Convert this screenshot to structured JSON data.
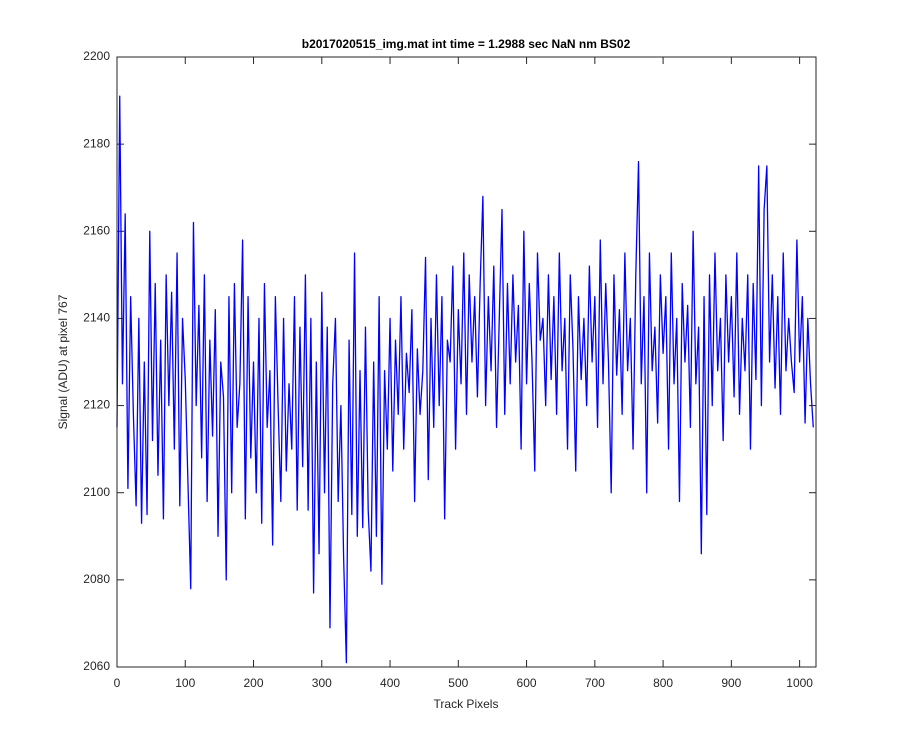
{
  "chart_data": {
    "type": "line",
    "title": "b2017020515_img.mat int time = 1.2988 sec  NaN nm BS02",
    "x_label": "Track Pixels",
    "y_label": "Signal (ADU) at pixel 767",
    "xlim": [
      0,
      1024
    ],
    "ylim": [
      2060,
      2200
    ],
    "xticks": [
      0,
      100,
      200,
      300,
      400,
      500,
      600,
      700,
      800,
      900,
      1000
    ],
    "yticks": [
      2060,
      2080,
      2100,
      2120,
      2140,
      2160,
      2180,
      2200
    ],
    "x": [
      0,
      4,
      8,
      12,
      16,
      20,
      24,
      28,
      32,
      36,
      40,
      44,
      48,
      52,
      56,
      60,
      64,
      68,
      72,
      76,
      80,
      84,
      88,
      92,
      96,
      100,
      104,
      108,
      112,
      116,
      120,
      124,
      128,
      132,
      136,
      140,
      144,
      148,
      152,
      156,
      160,
      164,
      168,
      172,
      176,
      180,
      184,
      188,
      192,
      196,
      200,
      204,
      208,
      212,
      216,
      220,
      224,
      228,
      232,
      236,
      240,
      244,
      248,
      252,
      256,
      260,
      264,
      268,
      272,
      276,
      280,
      284,
      288,
      292,
      296,
      300,
      304,
      308,
      312,
      316,
      320,
      324,
      328,
      332,
      336,
      340,
      344,
      348,
      352,
      356,
      360,
      364,
      368,
      372,
      376,
      380,
      384,
      388,
      392,
      396,
      400,
      404,
      408,
      412,
      416,
      420,
      424,
      428,
      432,
      436,
      440,
      444,
      448,
      452,
      456,
      460,
      464,
      468,
      472,
      476,
      480,
      484,
      488,
      492,
      496,
      500,
      504,
      508,
      512,
      516,
      520,
      524,
      528,
      532,
      536,
      540,
      544,
      548,
      552,
      556,
      560,
      564,
      568,
      572,
      576,
      580,
      584,
      588,
      592,
      596,
      600,
      604,
      608,
      612,
      616,
      620,
      624,
      628,
      632,
      636,
      640,
      644,
      648,
      652,
      656,
      660,
      664,
      668,
      672,
      676,
      680,
      684,
      688,
      692,
      696,
      700,
      704,
      708,
      712,
      716,
      720,
      724,
      728,
      732,
      736,
      740,
      744,
      748,
      752,
      756,
      760,
      764,
      768,
      772,
      776,
      780,
      784,
      788,
      792,
      796,
      800,
      804,
      808,
      812,
      816,
      820,
      824,
      828,
      832,
      836,
      840,
      844,
      848,
      852,
      856,
      860,
      864,
      868,
      872,
      876,
      880,
      884,
      888,
      892,
      896,
      900,
      904,
      908,
      912,
      916,
      920,
      924,
      928,
      932,
      936,
      940,
      944,
      948,
      952,
      956,
      960,
      964,
      968,
      972,
      976,
      980,
      984,
      988,
      992,
      996,
      1000,
      1004,
      1008,
      1012,
      1016,
      1020
    ],
    "series": [
      {
        "color": "#0000ff",
        "values": [
          2115,
          2191,
          2125,
          2164,
          2101,
          2145,
          2118,
          2097,
          2140,
          2093,
          2130,
          2095,
          2160,
          2112,
          2148,
          2104,
          2135,
          2094,
          2150,
          2120,
          2146,
          2110,
          2155,
          2097,
          2140,
          2126,
          2102,
          2078,
          2162,
          2120,
          2143,
          2108,
          2150,
          2098,
          2135,
          2113,
          2142,
          2090,
          2130,
          2122,
          2080,
          2145,
          2100,
          2148,
          2115,
          2125,
          2158,
          2094,
          2145,
          2108,
          2130,
          2100,
          2140,
          2093,
          2148,
          2115,
          2128,
          2088,
          2145,
          2120,
          2098,
          2140,
          2105,
          2125,
          2110,
          2145,
          2096,
          2138,
          2106,
          2150,
          2096,
          2140,
          2077,
          2130,
          2086,
          2146,
          2100,
          2138,
          2069,
          2125,
          2140,
          2098,
          2120,
          2085,
          2061,
          2135,
          2095,
          2155,
          2090,
          2128,
          2092,
          2138,
          2096,
          2082,
          2130,
          2090,
          2145,
          2079,
          2128,
          2110,
          2140,
          2105,
          2135,
          2118,
          2145,
          2110,
          2132,
          2123,
          2142,
          2098,
          2133,
          2118,
          2128,
          2154,
          2103,
          2140,
          2115,
          2150,
          2120,
          2145,
          2094,
          2135,
          2130,
          2152,
          2110,
          2142,
          2125,
          2155,
          2118,
          2150,
          2130,
          2145,
          2122,
          2148,
          2168,
          2120,
          2145,
          2128,
          2152,
          2115,
          2140,
          2165,
          2118,
          2148,
          2125,
          2150,
          2130,
          2143,
          2110,
          2160,
          2125,
          2148,
          2130,
          2105,
          2155,
          2135,
          2140,
          2120,
          2150,
          2126,
          2145,
          2118,
          2155,
          2128,
          2140,
          2110,
          2150,
          2133,
          2105,
          2145,
          2126,
          2140,
          2120,
          2152,
          2130,
          2145,
          2115,
          2158,
          2125,
          2148,
          2130,
          2100,
          2150,
          2127,
          2142,
          2118,
          2155,
          2128,
          2140,
          2110,
          2150,
          2176,
          2125,
          2145,
          2100,
          2155,
          2128,
          2138,
          2116,
          2150,
          2132,
          2145,
          2110,
          2155,
          2125,
          2140,
          2098,
          2148,
          2130,
          2143,
          2115,
          2160,
          2125,
          2138,
          2086,
          2145,
          2095,
          2150,
          2120,
          2155,
          2128,
          2140,
          2112,
          2150,
          2130,
          2145,
          2122,
          2155,
          2118,
          2140,
          2128,
          2150,
          2110,
          2148,
          2126,
          2175,
          2120,
          2165,
          2175,
          2130,
          2150,
          2124,
          2145,
          2118,
          2155,
          2128,
          2140,
          2130,
          2123,
          2158,
          2130,
          2145,
          2116,
          2140,
          2125,
          2115
        ]
      }
    ]
  }
}
